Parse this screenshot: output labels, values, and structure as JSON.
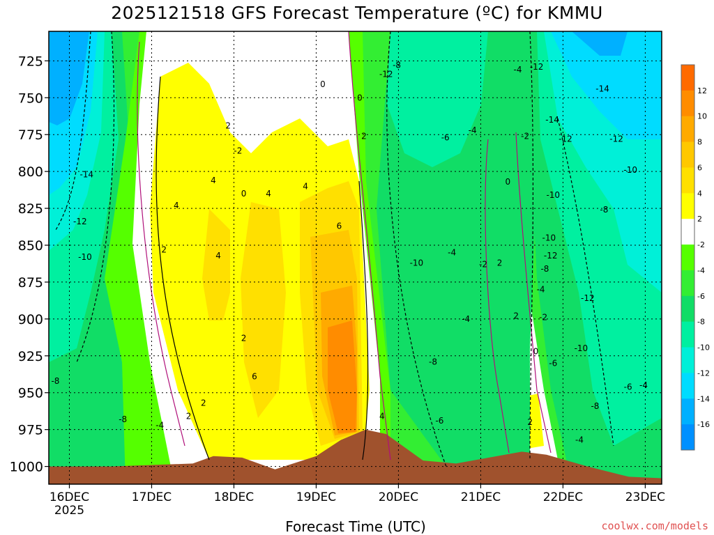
{
  "chart_data": {
    "type": "heatmap",
    "title": "2025121518 GFS Forecast Temperature (ºC) for KMMU",
    "xlabel": "Forecast Time (UTC)",
    "ylabel": "",
    "credit": "coolwx.com/models",
    "x_ticks": [
      "16DEC",
      "17DEC",
      "18DEC",
      "19DEC",
      "20DEC",
      "21DEC",
      "22DEC",
      "23DEC"
    ],
    "x_year_label": "2025",
    "x_range_days": [
      15.75,
      23.2
    ],
    "y_ticks": [
      725,
      750,
      775,
      800,
      825,
      850,
      875,
      900,
      925,
      950,
      975,
      1000
    ],
    "y_range_hpa": [
      705,
      1012
    ],
    "grid": true,
    "colorbar": {
      "placement": "right",
      "labels": [
        "12",
        "10",
        "8",
        "6",
        "4",
        "2",
        "-2",
        "-4",
        "-6",
        "-8",
        "-10",
        "-12",
        "-14",
        "-16"
      ],
      "colors": [
        "#ff6a00",
        "#ff8c00",
        "#ffaa00",
        "#ffc800",
        "#ffe000",
        "#ffff00",
        "#ffffff",
        "#55ff00",
        "#33ee33",
        "#11dd66",
        "#00f0a0",
        "#00f0d8",
        "#00dcff",
        "#00b0ff",
        "#0090ff"
      ]
    },
    "terrain_color": "#a0522d",
    "terrain_surface_hpa": {
      "days": [
        15.75,
        16.5,
        17.5,
        17.75,
        18.1,
        18.5,
        19.0,
        19.3,
        19.6,
        19.85,
        20.3,
        20.7,
        21.1,
        21.5,
        21.8,
        22.3,
        22.8,
        23.2
      ],
      "hpa": [
        1000,
        1000,
        998,
        993,
        994,
        1002,
        993,
        982,
        975,
        978,
        996,
        998,
        994,
        990,
        992,
        1000,
        1007,
        1008
      ]
    },
    "contour_labels": [
      {
        "day": 16.21,
        "hpa": 802,
        "text": "-14"
      },
      {
        "day": 16.13,
        "hpa": 834,
        "text": "-12"
      },
      {
        "day": 16.19,
        "hpa": 858,
        "text": "-10"
      },
      {
        "day": 15.83,
        "hpa": 942,
        "text": "-8"
      },
      {
        "day": 16.65,
        "hpa": 968,
        "text": "-8"
      },
      {
        "day": 17.1,
        "hpa": 972,
        "text": "-4"
      },
      {
        "day": 17.45,
        "hpa": 966,
        "text": "2"
      },
      {
        "day": 17.63,
        "hpa": 957,
        "text": "2"
      },
      {
        "day": 17.15,
        "hpa": 853,
        "text": "2"
      },
      {
        "day": 17.3,
        "hpa": 823,
        "text": "4"
      },
      {
        "day": 17.75,
        "hpa": 806,
        "text": "4"
      },
      {
        "day": 17.93,
        "hpa": 769,
        "text": "2"
      },
      {
        "day": 18.05,
        "hpa": 786,
        "text": "-2"
      },
      {
        "day": 18.12,
        "hpa": 815,
        "text": "0"
      },
      {
        "day": 18.42,
        "hpa": 815,
        "text": "4"
      },
      {
        "day": 17.81,
        "hpa": 857,
        "text": "4"
      },
      {
        "day": 18.12,
        "hpa": 913,
        "text": "2"
      },
      {
        "day": 18.25,
        "hpa": 939,
        "text": "6"
      },
      {
        "day": 18.87,
        "hpa": 810,
        "text": "4"
      },
      {
        "day": 19.28,
        "hpa": 837,
        "text": "6"
      },
      {
        "day": 19.08,
        "hpa": 741,
        "text": "0"
      },
      {
        "day": 19.53,
        "hpa": 750,
        "text": "0"
      },
      {
        "day": 19.58,
        "hpa": 776,
        "text": "2"
      },
      {
        "day": 19.8,
        "hpa": 966,
        "text": "4"
      },
      {
        "day": 19.85,
        "hpa": 734,
        "text": "-12"
      },
      {
        "day": 19.98,
        "hpa": 728,
        "text": "-8"
      },
      {
        "day": 20.57,
        "hpa": 777,
        "text": "-6"
      },
      {
        "day": 20.9,
        "hpa": 772,
        "text": "-4"
      },
      {
        "day": 20.65,
        "hpa": 855,
        "text": "-4"
      },
      {
        "day": 20.22,
        "hpa": 862,
        "text": "-10"
      },
      {
        "day": 21.03,
        "hpa": 863,
        "text": "-2"
      },
      {
        "day": 20.82,
        "hpa": 900,
        "text": "-4"
      },
      {
        "day": 20.42,
        "hpa": 929,
        "text": "-8"
      },
      {
        "day": 20.5,
        "hpa": 969,
        "text": "-6"
      },
      {
        "day": 21.33,
        "hpa": 807,
        "text": "0"
      },
      {
        "day": 21.23,
        "hpa": 862,
        "text": "2"
      },
      {
        "day": 21.43,
        "hpa": 898,
        "text": "2"
      },
      {
        "day": 21.45,
        "hpa": 731,
        "text": "-4"
      },
      {
        "day": 21.68,
        "hpa": 729,
        "text": "-12"
      },
      {
        "day": 21.54,
        "hpa": 776,
        "text": "-2"
      },
      {
        "day": 21.87,
        "hpa": 765,
        "text": "-14"
      },
      {
        "day": 22.03,
        "hpa": 778,
        "text": "-12"
      },
      {
        "day": 22.65,
        "hpa": 778,
        "text": "-12"
      },
      {
        "day": 22.48,
        "hpa": 744,
        "text": "-14"
      },
      {
        "day": 22.82,
        "hpa": 799,
        "text": "-10"
      },
      {
        "day": 21.88,
        "hpa": 816,
        "text": "-10"
      },
      {
        "day": 21.83,
        "hpa": 845,
        "text": "-10"
      },
      {
        "day": 22.5,
        "hpa": 826,
        "text": "-8"
      },
      {
        "day": 21.85,
        "hpa": 857,
        "text": "-12"
      },
      {
        "day": 21.78,
        "hpa": 866,
        "text": "-8"
      },
      {
        "day": 21.73,
        "hpa": 880,
        "text": "-4"
      },
      {
        "day": 22.3,
        "hpa": 886,
        "text": "-12"
      },
      {
        "day": 21.76,
        "hpa": 899,
        "text": "-2"
      },
      {
        "day": 21.67,
        "hpa": 922,
        "text": "0"
      },
      {
        "day": 21.88,
        "hpa": 930,
        "text": "-6"
      },
      {
        "day": 22.22,
        "hpa": 920,
        "text": "-10"
      },
      {
        "day": 22.79,
        "hpa": 946,
        "text": "-6"
      },
      {
        "day": 22.98,
        "hpa": 945,
        "text": "-4"
      },
      {
        "day": 22.39,
        "hpa": 959,
        "text": "-8"
      },
      {
        "day": 21.6,
        "hpa": 970,
        "text": "2"
      },
      {
        "day": 22.2,
        "hpa": 982,
        "text": "-4"
      }
    ]
  }
}
